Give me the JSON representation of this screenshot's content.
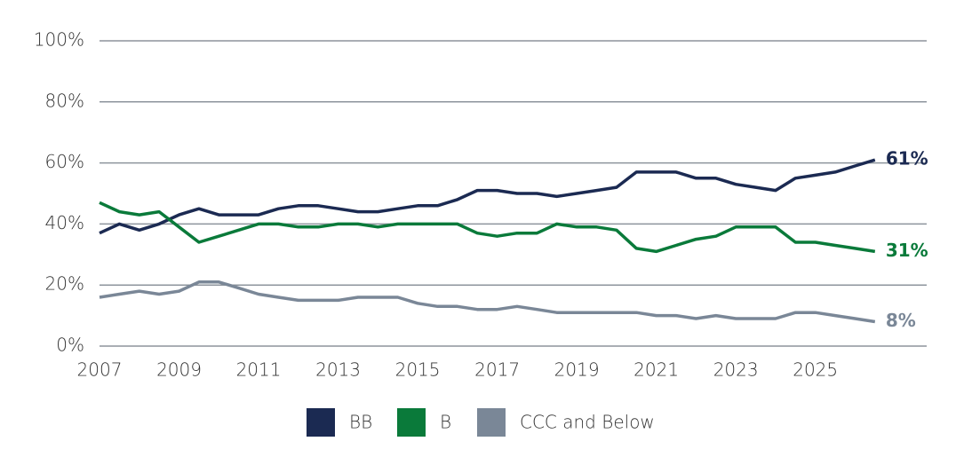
{
  "chart_data": {
    "type": "line",
    "x": [
      2007,
      2007.5,
      2008,
      2008.5,
      2009,
      2009.5,
      2010,
      2010.5,
      2011,
      2011.5,
      2012,
      2012.5,
      2013,
      2013.5,
      2014,
      2014.5,
      2015,
      2015.5,
      2016,
      2016.5,
      2017,
      2017.5,
      2018,
      2018.5,
      2019,
      2019.5,
      2020,
      2020.5,
      2021,
      2021.5,
      2022,
      2022.5,
      2023,
      2023.5,
      2024,
      2024.5,
      2025,
      2025.5,
      2026,
      2026.5
    ],
    "series": [
      {
        "name": "BB",
        "color": "#1b2a52",
        "end_label": "61%",
        "values": [
          37,
          40,
          38,
          40,
          43,
          45,
          43,
          43,
          43,
          45,
          46,
          46,
          45,
          44,
          44,
          45,
          46,
          46,
          48,
          51,
          51,
          50,
          50,
          49,
          50,
          51,
          52,
          57,
          57,
          57,
          55,
          55,
          53,
          52,
          51,
          55,
          56,
          57,
          59,
          61
        ]
      },
      {
        "name": "B",
        "color": "#0a7a3a",
        "end_label": "31%",
        "values": [
          47,
          44,
          43,
          44,
          39,
          34,
          36,
          38,
          40,
          40,
          39,
          39,
          40,
          40,
          39,
          40,
          40,
          40,
          40,
          37,
          36,
          37,
          37,
          40,
          39,
          39,
          38,
          32,
          31,
          33,
          35,
          36,
          39,
          39,
          39,
          34,
          34,
          33,
          32,
          31
        ]
      },
      {
        "name": "CCC and Below",
        "color": "#7a8797",
        "end_label": "8%",
        "values": [
          16,
          17,
          18,
          17,
          18,
          21,
          21,
          19,
          17,
          16,
          15,
          15,
          15,
          16,
          16,
          16,
          14,
          13,
          13,
          12,
          12,
          13,
          12,
          11,
          11,
          11,
          11,
          11,
          10,
          10,
          9,
          10,
          9,
          9,
          9,
          11,
          11,
          10,
          9,
          8
        ]
      }
    ],
    "xlim": [
      2007,
      2027.8
    ],
    "xticks": [
      2007,
      2009,
      2011,
      2013,
      2015,
      2017,
      2019,
      2021,
      2023,
      2025
    ],
    "ylim": [
      0,
      100
    ],
    "yticks": [
      {
        "value": 0,
        "label": "0%"
      },
      {
        "value": 20,
        "label": "20%"
      },
      {
        "value": 40,
        "label": "40%"
      },
      {
        "value": 60,
        "label": "60%"
      },
      {
        "value": 80,
        "label": "80%"
      },
      {
        "value": 100,
        "label": "100%"
      }
    ],
    "grid": true,
    "legend": "bottom"
  }
}
